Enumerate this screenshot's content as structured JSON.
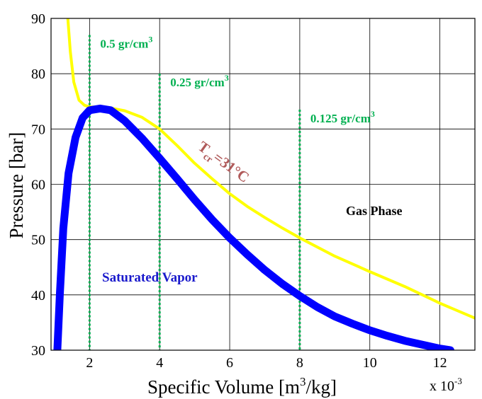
{
  "chart_data": {
    "type": "line",
    "title": "",
    "xlabel": "Specific Volume [m",
    "xlabel_sup": "3",
    "xlabel_tail": "/kg]",
    "ylabel": "Pressure [bar]",
    "x_multiplier_label": "x 10",
    "x_multiplier_exp": "-3",
    "xlim": [
      0.9,
      13.0
    ],
    "ylim": [
      30,
      90
    ],
    "x_ticks": [
      2,
      4,
      6,
      8,
      10,
      12
    ],
    "y_ticks": [
      30,
      40,
      50,
      60,
      70,
      80,
      90
    ],
    "grid": true,
    "series": [
      {
        "key": "isotherm",
        "color": "#ffff00",
        "x": [
          1.38,
          1.45,
          1.55,
          1.7,
          1.85,
          2.0,
          2.5,
          3.0,
          3.5,
          4.0,
          4.5,
          5.0,
          5.5,
          6.0,
          6.5,
          7.0,
          7.5,
          8.0,
          9.0,
          10.0,
          11.0,
          12.0,
          13.0
        ],
        "y": [
          90,
          84,
          78.5,
          75.2,
          74.3,
          74.0,
          73.9,
          73.3,
          72.1,
          70.0,
          67.0,
          63.8,
          61.0,
          58.3,
          56.0,
          54.0,
          52.1,
          50.3,
          47.0,
          44.2,
          41.5,
          38.5,
          35.8
        ]
      },
      {
        "key": "saturated-vapor",
        "color": "#0000ff",
        "x": [
          1.08,
          1.15,
          1.25,
          1.4,
          1.6,
          1.8,
          2.0,
          2.3,
          2.6,
          3.0,
          3.5,
          4.0,
          4.5,
          5.0,
          5.5,
          6.0,
          6.5,
          7.0,
          7.5,
          8.0,
          8.5,
          9.0,
          9.5,
          10.0,
          10.5,
          11.0,
          11.5,
          12.0,
          12.3
        ],
        "y": [
          30,
          40,
          52,
          62,
          68.5,
          72,
          73.4,
          73.7,
          73.4,
          71.5,
          68.3,
          64.7,
          61.0,
          57.2,
          53.6,
          50.3,
          47.3,
          44.5,
          42.0,
          39.8,
          37.8,
          36.1,
          34.8,
          33.6,
          32.6,
          31.7,
          31.0,
          30.3,
          30
        ]
      }
    ],
    "density_lines": [
      {
        "x": 2,
        "y_top": 87,
        "label": "0.5 gr/cm",
        "sup": "3"
      },
      {
        "x": 4,
        "y_top": 80,
        "label": "0.25 gr/cm",
        "sup": "3"
      },
      {
        "x": 8,
        "y_top": 73.5,
        "label": "0.125 gr/cm",
        "sup": "3"
      }
    ],
    "annotations": {
      "tcr_main": "T",
      "tcr_sub": "cr",
      "tcr_rest": "=31°C",
      "gas_phase": "Gas Phase",
      "saturated_vapor": "Saturated Vapor"
    },
    "colors": {
      "density": "#00b050",
      "tcr": "#b05a5a",
      "sat_label": "#1a1acc",
      "grid": "#000000"
    }
  }
}
